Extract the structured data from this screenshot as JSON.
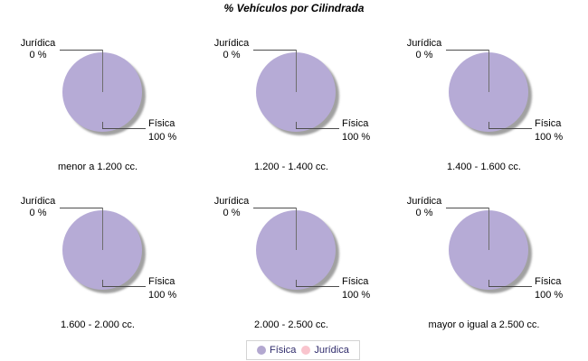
{
  "title": "% Vehículos por Cilindrada",
  "legend": {
    "items": [
      {
        "label": "Física",
        "color": "#b3a8d0"
      },
      {
        "label": "Jurídica",
        "color": "#f9c4cd"
      }
    ]
  },
  "colors": {
    "pie_fill": "#b6abd6",
    "shadow": "#8a8a8a",
    "leader_line": "#4d4d4d",
    "legend_text": "#2f2b6b",
    "legend_border": "#d4d4d4"
  },
  "chart_data": [
    {
      "type": "pie",
      "title": "menor a 1.200 cc.",
      "slices": [
        {
          "label": "Física",
          "value": 100,
          "pct_label": "100 %",
          "color": "#b6abd6"
        },
        {
          "label": "Jurídica",
          "value": 0,
          "pct_label": "0 %",
          "color": "#f9c4cd"
        }
      ]
    },
    {
      "type": "pie",
      "title": "1.200 - 1.400 cc.",
      "slices": [
        {
          "label": "Física",
          "value": 100,
          "pct_label": "100 %",
          "color": "#b6abd6"
        },
        {
          "label": "Jurídica",
          "value": 0,
          "pct_label": "0 %",
          "color": "#f9c4cd"
        }
      ]
    },
    {
      "type": "pie",
      "title": "1.400 - 1.600 cc.",
      "slices": [
        {
          "label": "Física",
          "value": 100,
          "pct_label": "100 %",
          "color": "#b6abd6"
        },
        {
          "label": "Jurídica",
          "value": 0,
          "pct_label": "0 %",
          "color": "#f9c4cd"
        }
      ]
    },
    {
      "type": "pie",
      "title": "1.600 - 2.000 cc.",
      "slices": [
        {
          "label": "Física",
          "value": 100,
          "pct_label": "100 %",
          "color": "#b6abd6"
        },
        {
          "label": "Jurídica",
          "value": 0,
          "pct_label": "0 %",
          "color": "#f9c4cd"
        }
      ]
    },
    {
      "type": "pie",
      "title": "2.000 - 2.500 cc.",
      "slices": [
        {
          "label": "Física",
          "value": 100,
          "pct_label": "100 %",
          "color": "#b6abd6"
        },
        {
          "label": "Jurídica",
          "value": 0,
          "pct_label": "0 %",
          "color": "#f9c4cd"
        }
      ]
    },
    {
      "type": "pie",
      "title": "mayor o igual a 2.500 cc.",
      "slices": [
        {
          "label": "Física",
          "value": 100,
          "pct_label": "100 %",
          "color": "#b6abd6"
        },
        {
          "label": "Jurídica",
          "value": 0,
          "pct_label": "0 %",
          "color": "#f9c4cd"
        }
      ]
    }
  ]
}
